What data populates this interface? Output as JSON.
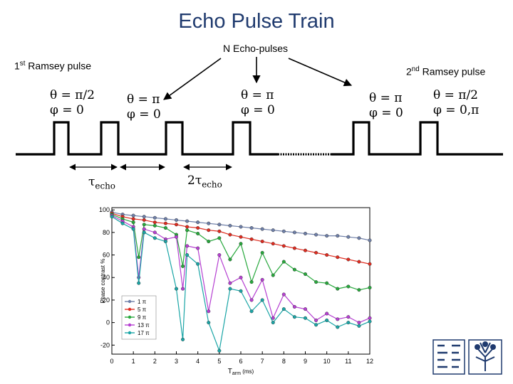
{
  "title": "Echo Pulse Train",
  "labels": {
    "n_echo": "N Echo-pulses",
    "first_ramsey": "1",
    "first_ramsey_sup": "st",
    "first_ramsey_rest": " Ramsey pulse",
    "second_ramsey": "2",
    "second_ramsey_sup": "nd",
    "second_ramsey_rest": " Ramsey pulse"
  },
  "pulses": [
    {
      "theta": "θ = π/2",
      "phi": "φ = 0"
    },
    {
      "theta": "θ = π",
      "phi": "φ = 0"
    },
    {
      "theta": "θ = π",
      "phi": "φ = 0"
    },
    {
      "theta": "θ = π",
      "phi": "φ = 0"
    },
    {
      "theta": "θ = π/2",
      "phi": "φ = 0,π"
    }
  ],
  "intervals": {
    "tau": "τ",
    "tau_sub": "echo",
    "two_tau": "2τ",
    "two_tau_sub": "echo"
  },
  "chart_data": {
    "type": "line",
    "xlabel": "T",
    "xlabel_sub": "arm",
    "xlabel_unit": " (ms)",
    "ylabel": "Phase contrast %",
    "xlim": [
      0,
      12
    ],
    "ylim": [
      -28,
      102
    ],
    "x_ticks": [
      "0",
      "1",
      "2",
      "3",
      "4",
      "5",
      "6",
      "7",
      "8",
      "9",
      "10",
      "11",
      "12"
    ],
    "y_ticks": [
      "100",
      "80",
      "60",
      "40",
      "20",
      "0",
      "-20"
    ],
    "legend_placement": "bottom-right",
    "series": [
      {
        "name": "1 π",
        "color": "#6e7fa8",
        "x": [
          0,
          0.5,
          1,
          1.5,
          2,
          2.5,
          3,
          3.5,
          4,
          4.5,
          5,
          5.5,
          6,
          6.5,
          7,
          7.5,
          8,
          8.5,
          9,
          9.5,
          10,
          10.5,
          11,
          11.5,
          12
        ],
        "y": [
          98,
          96,
          95,
          94,
          93,
          92,
          91,
          90,
          89,
          88,
          87,
          86,
          85,
          84,
          83,
          82,
          81,
          80,
          79,
          78,
          77,
          77,
          76,
          75,
          73
        ]
      },
      {
        "name": "5 π",
        "color": "#e02b1f",
        "x": [
          0,
          0.5,
          1,
          1.5,
          2,
          2.5,
          3,
          3.5,
          4,
          4.5,
          5,
          5.5,
          6,
          6.5,
          7,
          7.5,
          8,
          8.5,
          9,
          9.5,
          10,
          10.5,
          11,
          11.5,
          12
        ],
        "y": [
          97,
          94,
          92,
          91,
          89,
          88,
          87,
          85,
          84,
          82,
          81,
          78,
          76,
          74,
          72,
          70,
          68,
          66,
          64,
          62,
          60,
          58,
          56,
          54,
          52
        ]
      },
      {
        "name": "9 π",
        "color": "#27a83c",
        "x": [
          0,
          0.5,
          1,
          1.25,
          1.5,
          2,
          2.5,
          3,
          3.3,
          3.5,
          4,
          4.5,
          5,
          5.5,
          6,
          6.5,
          7,
          7.5,
          8,
          8.5,
          9,
          9.5,
          10,
          10.5,
          11,
          11.5,
          12
        ],
        "y": [
          96,
          92,
          89,
          58,
          87,
          86,
          84,
          78,
          50,
          82,
          79,
          72,
          75,
          56,
          70,
          36,
          62,
          42,
          54,
          47,
          43,
          36,
          35,
          30,
          32,
          29,
          31
        ]
      },
      {
        "name": "13 π",
        "color": "#b53fd1",
        "x": [
          0,
          0.5,
          1,
          1.25,
          1.5,
          2,
          2.5,
          3,
          3.3,
          3.5,
          4,
          4.5,
          5,
          5.5,
          6,
          6.5,
          7,
          7.5,
          8,
          8.5,
          9,
          9.5,
          10,
          10.5,
          11,
          11.5,
          12
        ],
        "y": [
          95,
          90,
          85,
          40,
          83,
          80,
          74,
          76,
          30,
          68,
          66,
          10,
          60,
          35,
          40,
          20,
          38,
          4,
          25,
          14,
          12,
          2,
          8,
          3,
          5,
          0,
          4
        ]
      },
      {
        "name": "17 π",
        "color": "#1aa5a6",
        "x": [
          0,
          0.5,
          1,
          1.25,
          1.5,
          2,
          2.5,
          3,
          3.3,
          3.5,
          4,
          4.5,
          5,
          5.5,
          6,
          6.5,
          7,
          7.5,
          8,
          8.5,
          9,
          9.5,
          10,
          10.5,
          11,
          11.5,
          12
        ],
        "y": [
          94,
          88,
          83,
          35,
          80,
          75,
          72,
          30,
          -15,
          60,
          52,
          0,
          -25,
          30,
          28,
          10,
          20,
          0,
          12,
          5,
          4,
          -2,
          2,
          -4,
          0,
          -3,
          1
        ]
      }
    ]
  }
}
